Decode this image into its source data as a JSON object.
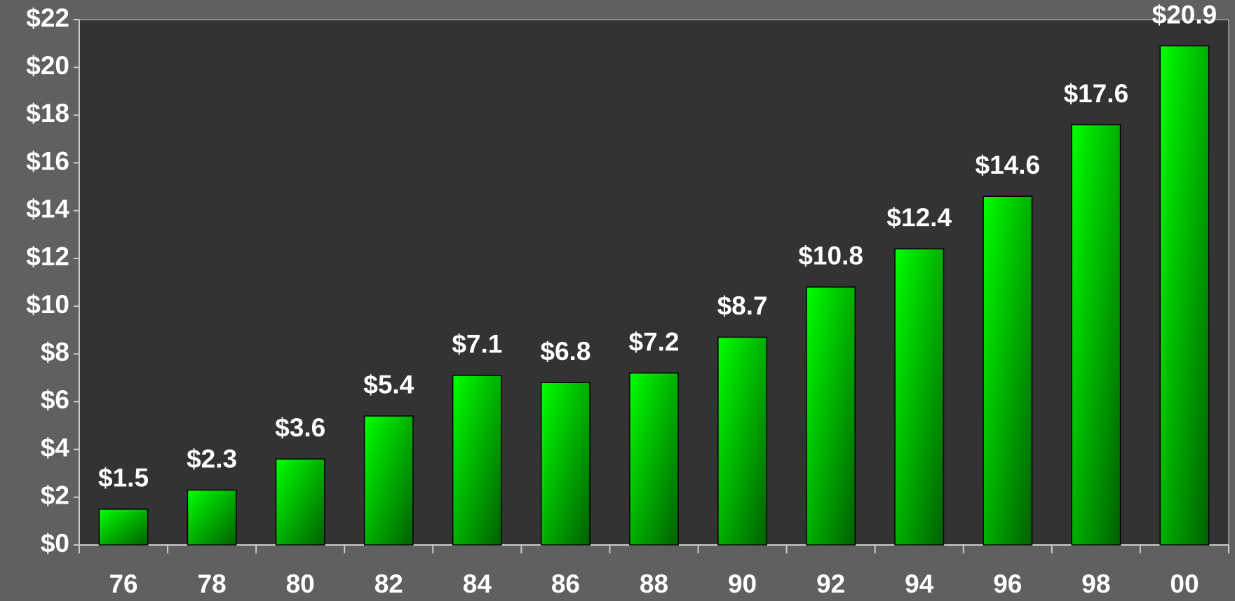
{
  "chart_data": {
    "type": "bar",
    "categories": [
      "76",
      "78",
      "80",
      "82",
      "84",
      "86",
      "88",
      "90",
      "92",
      "94",
      "96",
      "98",
      "00"
    ],
    "values": [
      1.5,
      2.3,
      3.6,
      5.4,
      7.1,
      6.8,
      7.2,
      8.7,
      10.8,
      12.4,
      14.6,
      17.6,
      20.9
    ],
    "value_labels": [
      "$1.5",
      "$2.3",
      "$3.6",
      "$5.4",
      "$7.1",
      "$6.8",
      "$7.2",
      "$8.7",
      "$10.8",
      "$12.4",
      "$14.6",
      "$17.6",
      "$20.9"
    ],
    "color": "#00ff00",
    "ylim": [
      0,
      22
    ],
    "yticks": [
      {
        "value": 0,
        "label": "$0"
      },
      {
        "value": 2,
        "label": "$2"
      },
      {
        "value": 4,
        "label": "$4"
      },
      {
        "value": 6,
        "label": "$6"
      },
      {
        "value": 8,
        "label": "$8"
      },
      {
        "value": 10,
        "label": "$10"
      },
      {
        "value": 12,
        "label": "$12"
      },
      {
        "value": 14,
        "label": "$14"
      },
      {
        "value": 16,
        "label": "$16"
      },
      {
        "value": 18,
        "label": "$18"
      },
      {
        "value": 20,
        "label": "$20"
      },
      {
        "value": 22,
        "label": "$22"
      }
    ],
    "grid": false
  }
}
